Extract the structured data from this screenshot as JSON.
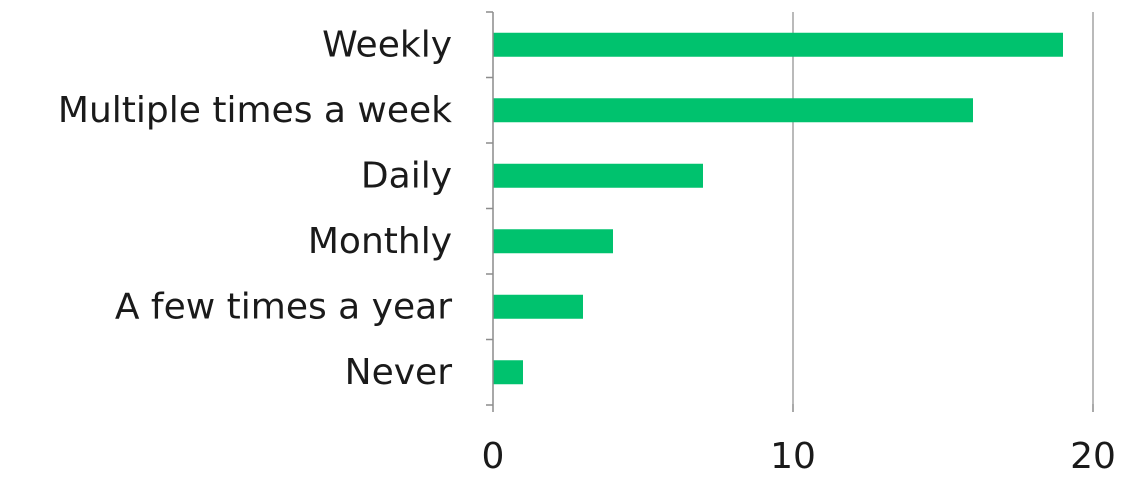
{
  "chart_data": {
    "type": "bar",
    "orientation": "horizontal",
    "title": "",
    "xlabel": "",
    "ylabel": "",
    "categories": [
      "Weekly",
      "Multiple times a week",
      "Daily",
      "Monthly",
      "A few times a year",
      "Never"
    ],
    "values": [
      19,
      16,
      7,
      4,
      3,
      1
    ],
    "xlim": [
      0,
      20
    ],
    "xticks": [
      0,
      10,
      20
    ],
    "grid": "vertical",
    "legend": "none",
    "bar_color": "#00c26e"
  }
}
